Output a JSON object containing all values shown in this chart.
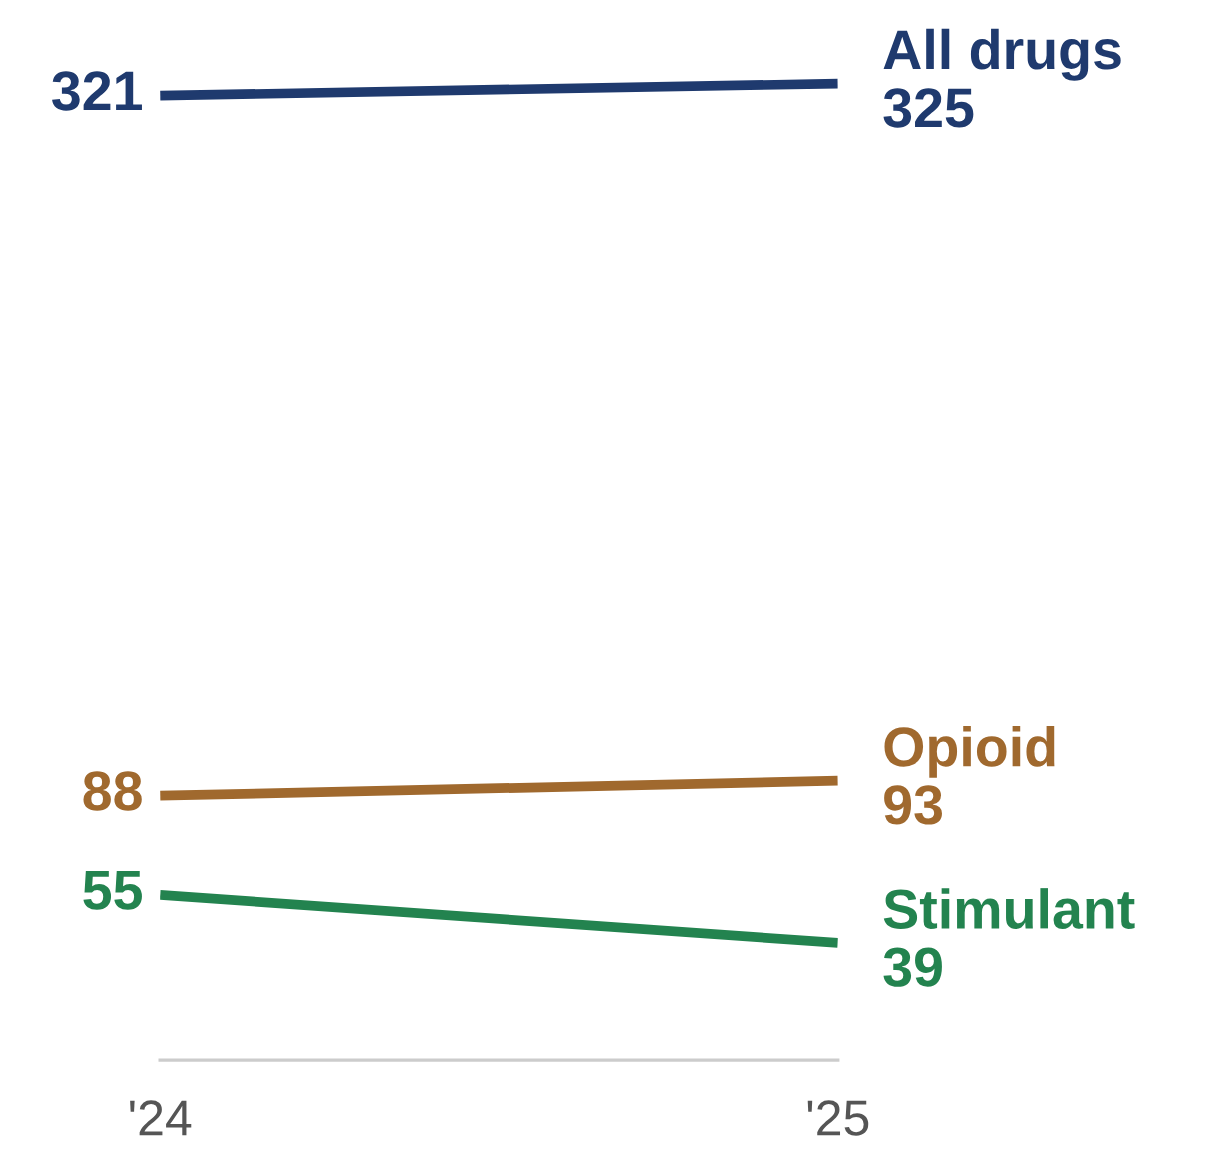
{
  "chart_data": {
    "type": "line",
    "categories": [
      "'24",
      "'25"
    ],
    "data_labels": true,
    "tick_labels": "x",
    "series": [
      {
        "name": "All drugs",
        "color": "#1f3a6e",
        "values": [
          321,
          325
        ]
      },
      {
        "name": "Opioid",
        "color": "#a0692e",
        "values": [
          88,
          93
        ]
      },
      {
        "name": "Stimulant",
        "color": "#23834f",
        "values": [
          55,
          39
        ]
      }
    ]
  }
}
